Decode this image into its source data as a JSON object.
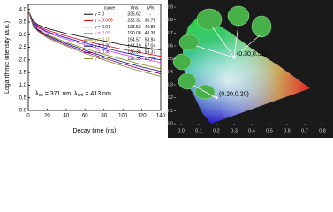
{
  "chart_data": [
    {
      "type": "line",
      "xlabel": "Decay time (ns)",
      "ylabel": "Logarithmic intensity (a.u.)",
      "xlim": [
        0,
        140
      ],
      "xticks": [
        0,
        20,
        40,
        60,
        80,
        100,
        120,
        140
      ],
      "ylim": [
        0,
        4.2
      ],
      "yticks": [
        {
          "value": 0,
          "label": "0.0"
        },
        0.5,
        {
          "value": 1,
          "label": "1.0"
        },
        1.5,
        {
          "value": 2,
          "label": "2.0"
        },
        2.5,
        {
          "value": 3,
          "label": "3.0"
        },
        3.5,
        {
          "value": 4,
          "label": "4.0"
        }
      ],
      "legend_columns": [
        "curve",
        "τ/ns",
        "η/%"
      ],
      "annotation": [
        "λ",
        "ex",
        " = 371 nm, λ",
        "em",
        " = 413 nm"
      ],
      "x": [
        0,
        5,
        10,
        20,
        40,
        60,
        80,
        100,
        120,
        140
      ],
      "series": [
        {
          "name": "y = 0",
          "tau": 335.62,
          "eta": "-",
          "color": "#000000",
          "values": [
            3.95,
            3.55,
            3.4,
            3.25,
            3.05,
            2.9,
            2.75,
            2.6,
            2.5,
            2.4
          ]
        },
        {
          "name": "y = 0.005",
          "tau": 232.32,
          "eta": 30.78,
          "color": "#e00000",
          "values": [
            3.95,
            3.5,
            3.35,
            3.18,
            2.95,
            2.75,
            2.58,
            2.42,
            2.28,
            2.15
          ]
        },
        {
          "name": "y = 0.01",
          "tau": 198.52,
          "eta": 40.85,
          "color": "#0000e0",
          "values": [
            3.95,
            3.48,
            3.32,
            3.12,
            2.88,
            2.67,
            2.48,
            2.3,
            2.15,
            2.0
          ]
        },
        {
          "name": "y = 0.05",
          "tau": 190.08,
          "eta": 43.36,
          "color": "#e040e0",
          "values": [
            3.95,
            3.45,
            3.28,
            3.08,
            2.82,
            2.6,
            2.4,
            2.22,
            2.05,
            1.9
          ]
        },
        {
          "name": "y = 0.10",
          "tau": 154.57,
          "eta": 53.94,
          "color": "#808000",
          "values": [
            3.95,
            3.42,
            3.22,
            3.0,
            2.7,
            2.45,
            2.22,
            2.02,
            1.82,
            1.65
          ]
        },
        {
          "name": "y = 0.20",
          "tau": 144.19,
          "eta": 57.04,
          "color": "#000080",
          "values": [
            3.95,
            3.4,
            3.2,
            2.96,
            2.65,
            2.38,
            2.14,
            1.92,
            1.72,
            1.55
          ]
        },
        {
          "name": "y = 0.30",
          "tau": 136.36,
          "eta": 59.37,
          "color": "#800080",
          "values": [
            3.95,
            3.38,
            3.17,
            2.92,
            2.6,
            2.32,
            2.07,
            1.84,
            1.63,
            1.45
          ]
        },
        {
          "name": "y = 0.40",
          "tau": 128.35,
          "eta": 61.76,
          "color": "#8a8a30",
          "values": [
            3.95,
            3.35,
            3.14,
            2.88,
            2.55,
            2.26,
            2.0,
            1.76,
            1.54,
            1.35
          ]
        }
      ]
    },
    {
      "type": "scatter",
      "xlim": [
        0,
        0.8
      ],
      "ylim": [
        0,
        0.9
      ],
      "xticks": [
        {
          "value": 0,
          "label": "0.0"
        },
        0.1,
        0.2,
        0.3,
        0.4,
        0.5,
        0.6,
        0.7,
        {
          "value": 0.8,
          "label": "0.8"
        }
      ],
      "yticks": [
        {
          "value": 0,
          "label": "0.0"
        },
        0.1,
        0.2,
        0.3,
        0.4,
        0.5,
        0.6,
        0.7,
        0.8,
        0.9
      ],
      "x": [
        0.3,
        0.2
      ],
      "y": [
        0.51,
        0.2
      ],
      "labels": [
        "(0.30,0.51)",
        "(0.20,0.20)"
      ],
      "color": "#ffffff"
    }
  ]
}
